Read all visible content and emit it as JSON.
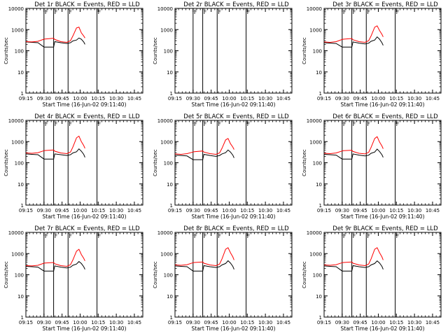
{
  "common": {
    "ylabel": "Counts/sec",
    "xlabel": "Start Time (16-Jun-02 09:11:40)",
    "x_tick_labels": [
      "09:15",
      "09:30",
      "09:45",
      "10:00",
      "10:15",
      "10:30",
      "10:45"
    ],
    "y_tick_labels": [
      "1",
      "10",
      "100",
      "1000",
      "10000"
    ],
    "flag_label": "F",
    "colors": {
      "events": "#000000",
      "lld": "#ff0000",
      "axes": "#000000",
      "background": "#ffffff"
    }
  },
  "chart_data": [
    {
      "type": "line",
      "title": "Det 1r  BLACK = Events, RED = LLD",
      "x_range_min": [
        4,
        53
      ],
      "yscale": "log",
      "ylim": [
        1,
        10000
      ],
      "flag_lines_min": [
        19,
        27,
        39,
        63
      ],
      "x": [
        4,
        9,
        14,
        19,
        20,
        27,
        28,
        33,
        38,
        41,
        43,
        46,
        48,
        50,
        52,
        53
      ],
      "series": [
        {
          "name": "BLACK = Events",
          "values": [
            260,
            250,
            240,
            150,
            150,
            150,
            270,
            240,
            220,
            240,
            290,
            320,
            400,
            350,
            260,
            200
          ]
        },
        {
          "name": "RED = LLD",
          "values": [
            270,
            260,
            280,
            350,
            360,
            390,
            340,
            270,
            250,
            300,
            500,
            1200,
            1300,
            700,
            500,
            400
          ]
        }
      ]
    },
    {
      "type": "line",
      "title": "Det 2r  BLACK = Events, RED = LLD",
      "x_range_min": [
        4,
        53
      ],
      "yscale": "log",
      "ylim": [
        1,
        10000
      ],
      "flag_lines_min": [
        19,
        27,
        39,
        63
      ],
      "x": [],
      "series": []
    },
    {
      "type": "line",
      "title": "Det 3r  BLACK = Events, RED = LLD",
      "x_range_min": [
        4,
        53
      ],
      "yscale": "log",
      "ylim": [
        1,
        10000
      ],
      "flag_lines_min": [
        19,
        27,
        39,
        63
      ],
      "x": [
        4,
        9,
        14,
        19,
        20,
        27,
        28,
        33,
        38,
        41,
        43,
        46,
        48,
        50,
        52,
        53
      ],
      "series": [
        {
          "name": "BLACK = Events",
          "values": [
            240,
            230,
            220,
            150,
            150,
            150,
            260,
            230,
            210,
            230,
            280,
            320,
            450,
            350,
            240,
            180
          ]
        },
        {
          "name": "RED = LLD",
          "values": [
            260,
            250,
            270,
            340,
            350,
            380,
            330,
            270,
            250,
            300,
            500,
            1300,
            1500,
            900,
            600,
            450
          ]
        }
      ]
    },
    {
      "type": "line",
      "title": "Det 4r  BLACK = Events, RED = LLD",
      "x_range_min": [
        4,
        53
      ],
      "yscale": "log",
      "ylim": [
        1,
        10000
      ],
      "flag_lines_min": [
        19,
        27,
        39,
        63
      ],
      "x": [
        4,
        9,
        14,
        19,
        20,
        27,
        28,
        33,
        38,
        41,
        43,
        46,
        48,
        50,
        52,
        53
      ],
      "series": [
        {
          "name": "BLACK = Events",
          "values": [
            260,
            250,
            240,
            150,
            150,
            150,
            260,
            240,
            220,
            240,
            290,
            330,
            450,
            350,
            250,
            180
          ]
        },
        {
          "name": "RED = LLD",
          "values": [
            290,
            280,
            300,
            370,
            380,
            400,
            350,
            290,
            270,
            320,
            550,
            1500,
            1800,
            1000,
            650,
            480
          ]
        }
      ]
    },
    {
      "type": "line",
      "title": "Det 5r  BLACK = Events, RED = LLD",
      "x_range_min": [
        4,
        53
      ],
      "yscale": "log",
      "ylim": [
        1,
        10000
      ],
      "flag_lines_min": [
        19,
        27,
        39,
        63
      ],
      "x": [
        4,
        9,
        14,
        19,
        20,
        27,
        28,
        33,
        38,
        41,
        43,
        46,
        48,
        50,
        52,
        53
      ],
      "series": [
        {
          "name": "BLACK = Events",
          "values": [
            230,
            220,
            210,
            140,
            140,
            140,
            250,
            220,
            200,
            220,
            260,
            300,
            400,
            320,
            230,
            170
          ]
        },
        {
          "name": "RED = LLD",
          "values": [
            260,
            250,
            270,
            320,
            330,
            360,
            320,
            270,
            250,
            290,
            480,
            1200,
            1400,
            800,
            550,
            420
          ]
        }
      ]
    },
    {
      "type": "line",
      "title": "Det 6r  BLACK = Events, RED = LLD",
      "x_range_min": [
        4,
        53
      ],
      "yscale": "log",
      "ylim": [
        1,
        10000
      ],
      "flag_lines_min": [
        19,
        27,
        39,
        63
      ],
      "x": [
        4,
        9,
        14,
        19,
        20,
        27,
        28,
        33,
        38,
        41,
        43,
        46,
        48,
        50,
        52,
        53
      ],
      "series": [
        {
          "name": "BLACK = Events",
          "values": [
            250,
            240,
            230,
            150,
            150,
            150,
            260,
            230,
            210,
            230,
            280,
            320,
            440,
            340,
            240,
            180
          ]
        },
        {
          "name": "RED = LLD",
          "values": [
            280,
            270,
            290,
            360,
            370,
            390,
            340,
            280,
            260,
            310,
            530,
            1400,
            1700,
            950,
            620,
            460
          ]
        }
      ]
    },
    {
      "type": "line",
      "title": "Det 7r  BLACK = Events, RED = LLD",
      "x_range_min": [
        4,
        53
      ],
      "yscale": "log",
      "ylim": [
        1,
        10000
      ],
      "flag_lines_min": [
        19,
        27,
        39,
        63
      ],
      "x": [
        4,
        9,
        14,
        19,
        20,
        27,
        28,
        33,
        38,
        41,
        43,
        46,
        48,
        50,
        52,
        53
      ],
      "series": [
        {
          "name": "BLACK = Events",
          "values": [
            250,
            240,
            230,
            150,
            150,
            150,
            260,
            230,
            210,
            230,
            280,
            320,
            420,
            340,
            240,
            180
          ]
        },
        {
          "name": "RED = LLD",
          "values": [
            270,
            260,
            280,
            350,
            360,
            380,
            330,
            270,
            250,
            300,
            500,
            1300,
            1600,
            900,
            600,
            450
          ]
        }
      ]
    },
    {
      "type": "line",
      "title": "Det 8r  BLACK = Events, RED = LLD",
      "x_range_min": [
        4,
        53
      ],
      "yscale": "log",
      "ylim": [
        1,
        10000
      ],
      "flag_lines_min": [
        19,
        27,
        39,
        63
      ],
      "x": [
        4,
        9,
        14,
        19,
        20,
        27,
        28,
        33,
        38,
        41,
        43,
        46,
        48,
        50,
        52,
        53
      ],
      "series": [
        {
          "name": "BLACK = Events",
          "values": [
            260,
            250,
            240,
            150,
            150,
            150,
            270,
            240,
            220,
            240,
            290,
            340,
            460,
            360,
            250,
            180
          ]
        },
        {
          "name": "RED = LLD",
          "values": [
            290,
            280,
            300,
            370,
            380,
            400,
            350,
            290,
            270,
            320,
            560,
            1600,
            1900,
            1100,
            700,
            500
          ]
        }
      ]
    },
    {
      "type": "line",
      "title": "Det 9r  BLACK = Events, RED = LLD",
      "x_range_min": [
        4,
        53
      ],
      "yscale": "log",
      "ylim": [
        1,
        10000
      ],
      "flag_lines_min": [
        19,
        27,
        39,
        63
      ],
      "x": [
        4,
        9,
        14,
        19,
        20,
        27,
        28,
        33,
        38,
        41,
        43,
        46,
        48,
        50,
        52,
        53
      ],
      "series": [
        {
          "name": "BLACK = Events",
          "values": [
            260,
            250,
            240,
            150,
            150,
            150,
            270,
            240,
            220,
            240,
            290,
            340,
            450,
            360,
            250,
            180
          ]
        },
        {
          "name": "RED = LLD",
          "values": [
            290,
            280,
            300,
            370,
            380,
            400,
            350,
            290,
            270,
            320,
            560,
            1600,
            1900,
            1100,
            700,
            500
          ]
        }
      ]
    }
  ]
}
